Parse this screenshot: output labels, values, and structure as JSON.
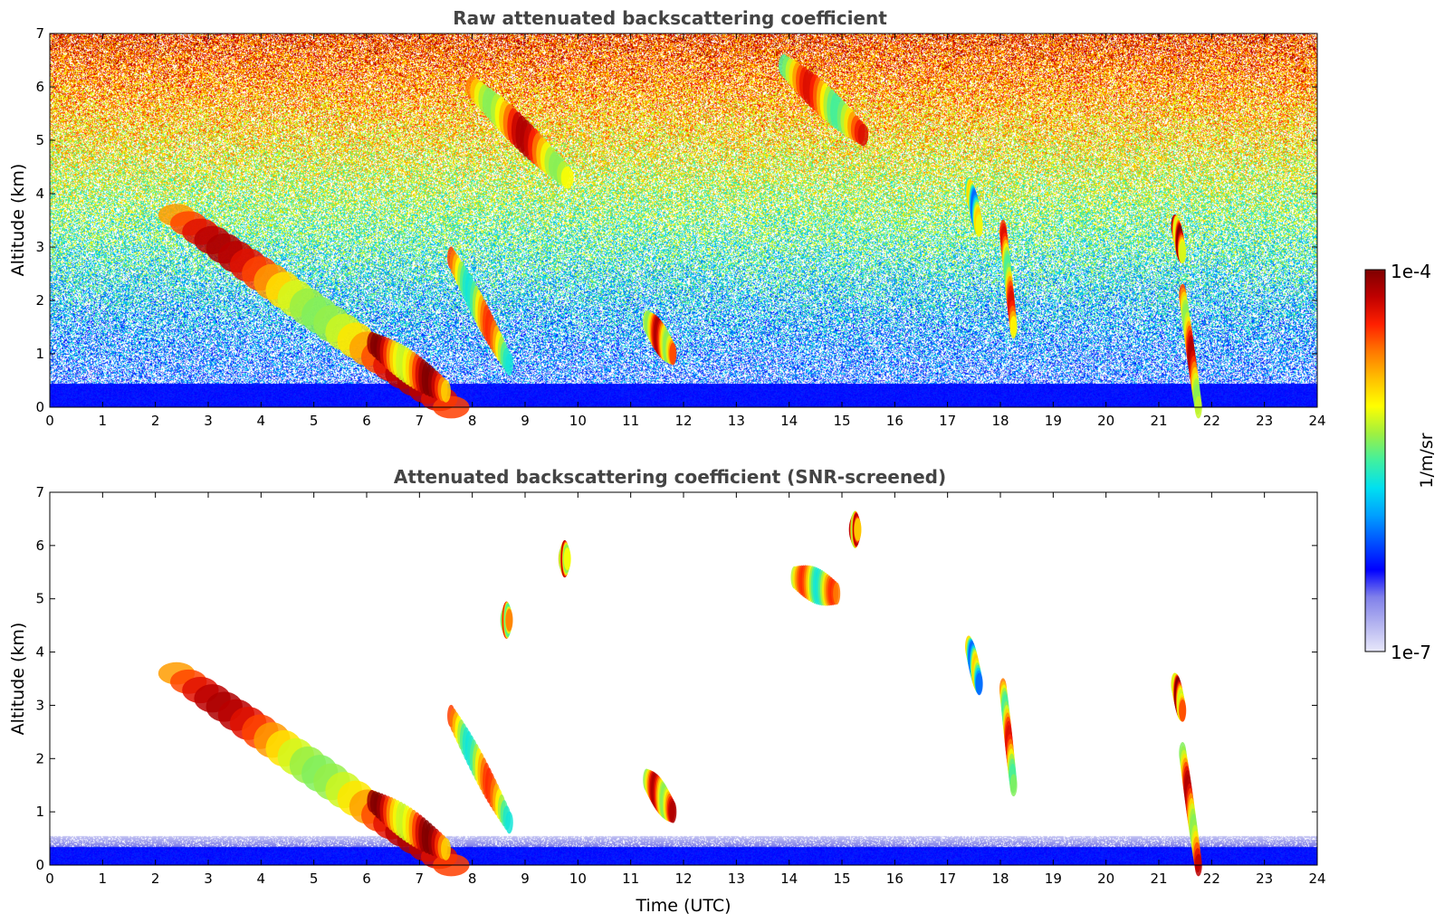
{
  "colors": {
    "colormap": [
      "#e8e8fa",
      "#b4b4f0",
      "#8080ea",
      "#0000ff",
      "#0050ff",
      "#00a0ff",
      "#00e0f0",
      "#40f0a0",
      "#a0f040",
      "#ffff00",
      "#ffc000",
      "#ff7800",
      "#ff2000",
      "#c00000",
      "#7f0000"
    ],
    "text_gray": "#444444"
  },
  "colorbar": {
    "label": "1/m/sr",
    "max_label": "1e-4",
    "min_label": "1e-7",
    "scale": "log",
    "range": [
      1e-07,
      0.0001
    ]
  },
  "chart_data": [
    {
      "type": "heatmap",
      "title": "Raw attenuated backscattering coefficient",
      "xlabel": "",
      "ylabel": "Altitude (km)",
      "xlim": [
        0,
        24
      ],
      "ylim": [
        0,
        7
      ],
      "x_ticks": [
        0,
        1,
        2,
        3,
        4,
        5,
        6,
        7,
        8,
        9,
        10,
        11,
        12,
        13,
        14,
        15,
        16,
        17,
        18,
        19,
        20,
        21,
        22,
        23,
        24
      ],
      "y_ticks": [
        0,
        1,
        2,
        3,
        4,
        5,
        6,
        7
      ],
      "background": "noisy",
      "features": [
        {
          "t_start": 2.4,
          "t_end": 7.6,
          "alt_start": 3.6,
          "alt_end": 0.0,
          "level": 0.85
        },
        {
          "t_start": 6.1,
          "t_end": 7.5,
          "alt_start": 1.2,
          "alt_end": 0.3,
          "level": 0.9
        },
        {
          "t_start": 7.6,
          "t_end": 8.7,
          "alt_start": 2.8,
          "alt_end": 0.8,
          "level": 0.75
        },
        {
          "t_start": 8.0,
          "t_end": 9.8,
          "alt_start": 6.0,
          "alt_end": 4.3,
          "level": 0.85
        },
        {
          "t_start": 11.3,
          "t_end": 11.8,
          "alt_start": 1.6,
          "alt_end": 1.0,
          "level": 0.85
        },
        {
          "t_start": 13.9,
          "t_end": 15.4,
          "alt_start": 6.4,
          "alt_end": 5.1,
          "level": 0.8
        },
        {
          "t_start": 17.4,
          "t_end": 17.6,
          "alt_start": 4.1,
          "alt_end": 3.4,
          "level": 0.6
        },
        {
          "t_start": 18.05,
          "t_end": 18.25,
          "alt_start": 3.3,
          "alt_end": 1.5,
          "level": 0.8
        },
        {
          "t_start": 21.3,
          "t_end": 21.45,
          "alt_start": 3.4,
          "alt_end": 2.9,
          "level": 0.9
        },
        {
          "t_start": 21.45,
          "t_end": 21.75,
          "alt_start": 2.1,
          "alt_end": 0.0,
          "level": 0.85
        }
      ]
    },
    {
      "type": "heatmap",
      "title": "Attenuated backscattering coefficient (SNR-screened)",
      "xlabel": "Time (UTC)",
      "ylabel": "Altitude (km)",
      "xlim": [
        0,
        24
      ],
      "ylim": [
        0,
        7
      ],
      "x_ticks": [
        0,
        1,
        2,
        3,
        4,
        5,
        6,
        7,
        8,
        9,
        10,
        11,
        12,
        13,
        14,
        15,
        16,
        17,
        18,
        19,
        20,
        21,
        22,
        23,
        24
      ],
      "y_ticks": [
        0,
        1,
        2,
        3,
        4,
        5,
        6,
        7
      ],
      "background": "screened",
      "features": [
        {
          "t_start": 2.4,
          "t_end": 7.6,
          "alt_start": 3.6,
          "alt_end": 0.0,
          "level": 0.85
        },
        {
          "t_start": 6.1,
          "t_end": 7.5,
          "alt_start": 1.2,
          "alt_end": 0.3,
          "level": 0.9
        },
        {
          "t_start": 7.6,
          "t_end": 8.7,
          "alt_start": 2.8,
          "alt_end": 0.8,
          "level": 0.75
        },
        {
          "t_start": 9.7,
          "t_end": 9.8,
          "alt_start": 5.75,
          "alt_end": 5.75,
          "level": 0.85
        },
        {
          "t_start": 8.6,
          "t_end": 8.7,
          "alt_start": 4.6,
          "alt_end": 4.6,
          "level": 0.8
        },
        {
          "t_start": 11.3,
          "t_end": 11.8,
          "alt_start": 1.6,
          "alt_end": 1.0,
          "level": 0.85
        },
        {
          "t_start": 14.1,
          "t_end": 14.9,
          "alt_start": 5.4,
          "alt_end": 5.1,
          "level": 0.75
        },
        {
          "t_start": 15.2,
          "t_end": 15.3,
          "alt_start": 6.3,
          "alt_end": 6.3,
          "level": 0.85
        },
        {
          "t_start": 17.4,
          "t_end": 17.6,
          "alt_start": 4.1,
          "alt_end": 3.4,
          "level": 0.6
        },
        {
          "t_start": 18.05,
          "t_end": 18.25,
          "alt_start": 3.3,
          "alt_end": 1.5,
          "level": 0.8
        },
        {
          "t_start": 21.3,
          "t_end": 21.45,
          "alt_start": 3.4,
          "alt_end": 2.9,
          "level": 0.9
        },
        {
          "t_start": 21.45,
          "t_end": 21.75,
          "alt_start": 2.1,
          "alt_end": 0.0,
          "level": 0.85
        }
      ]
    }
  ]
}
